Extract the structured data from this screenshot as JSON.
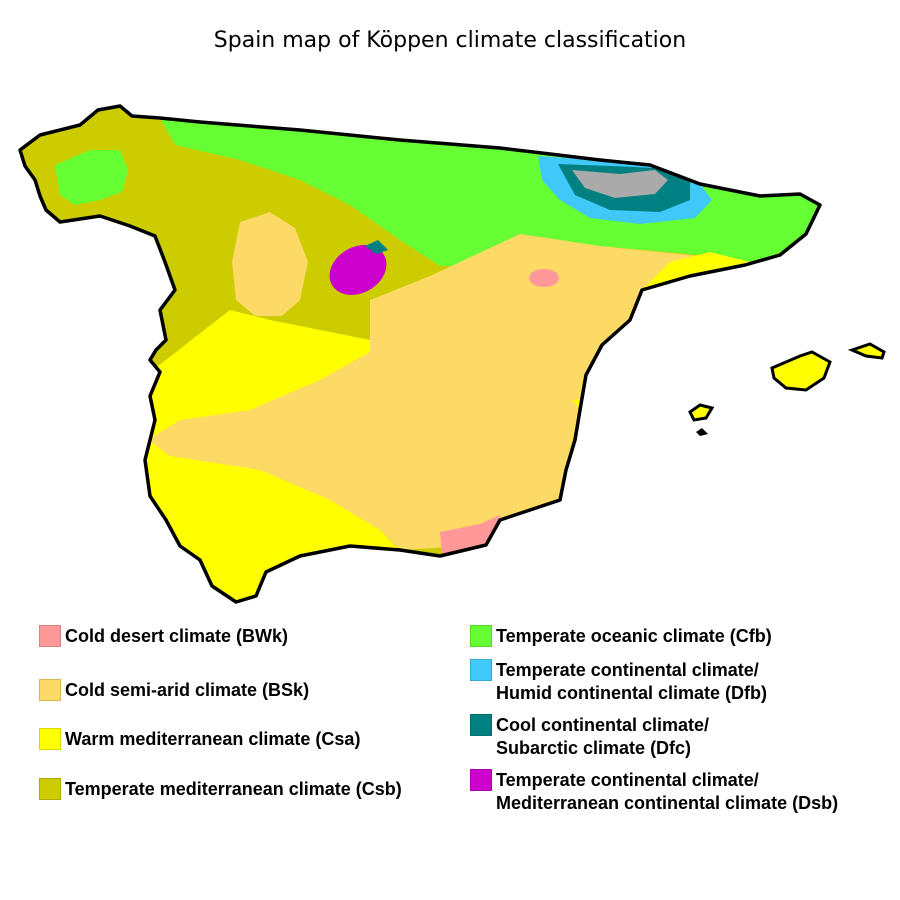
{
  "title": "Spain map of Köppen climate classification",
  "colors": {
    "BWk": "#ff9999",
    "BSk": "#fdd966",
    "Csa": "#ffff00",
    "Csb": "#cccc00",
    "Cfb": "#66ff33",
    "Dfb": "#3fc8f8",
    "Dfc": "#008080",
    "Dsb": "#cc00cc",
    "unclassified": "#aaaaaa"
  },
  "legend": {
    "left": [
      {
        "code": "BWk",
        "lines": [
          "Cold desert climate (BWk)"
        ]
      },
      {
        "code": "BSk",
        "lines": [
          "Cold semi-arid climate (BSk)"
        ]
      },
      {
        "code": "Csa",
        "lines": [
          "Warm mediterranean climate (Csa)"
        ]
      },
      {
        "code": "Csb",
        "lines": [
          "Temperate mediterranean climate (Csb)"
        ]
      }
    ],
    "right": [
      {
        "code": "Cfb",
        "lines": [
          "Temperate oceanic climate (Cfb)"
        ]
      },
      {
        "code": "Dfb",
        "lines": [
          "Temperate continental climate/",
          "Humid continental climate (Dfb)"
        ]
      },
      {
        "code": "Dfc",
        "lines": [
          "Cool continental climate/",
          "Subarctic climate (Dfc)"
        ]
      },
      {
        "code": "Dsb",
        "lines": [
          "Temperate continental climate/",
          "Mediterranean continental climate (Dsb)"
        ]
      }
    ]
  }
}
